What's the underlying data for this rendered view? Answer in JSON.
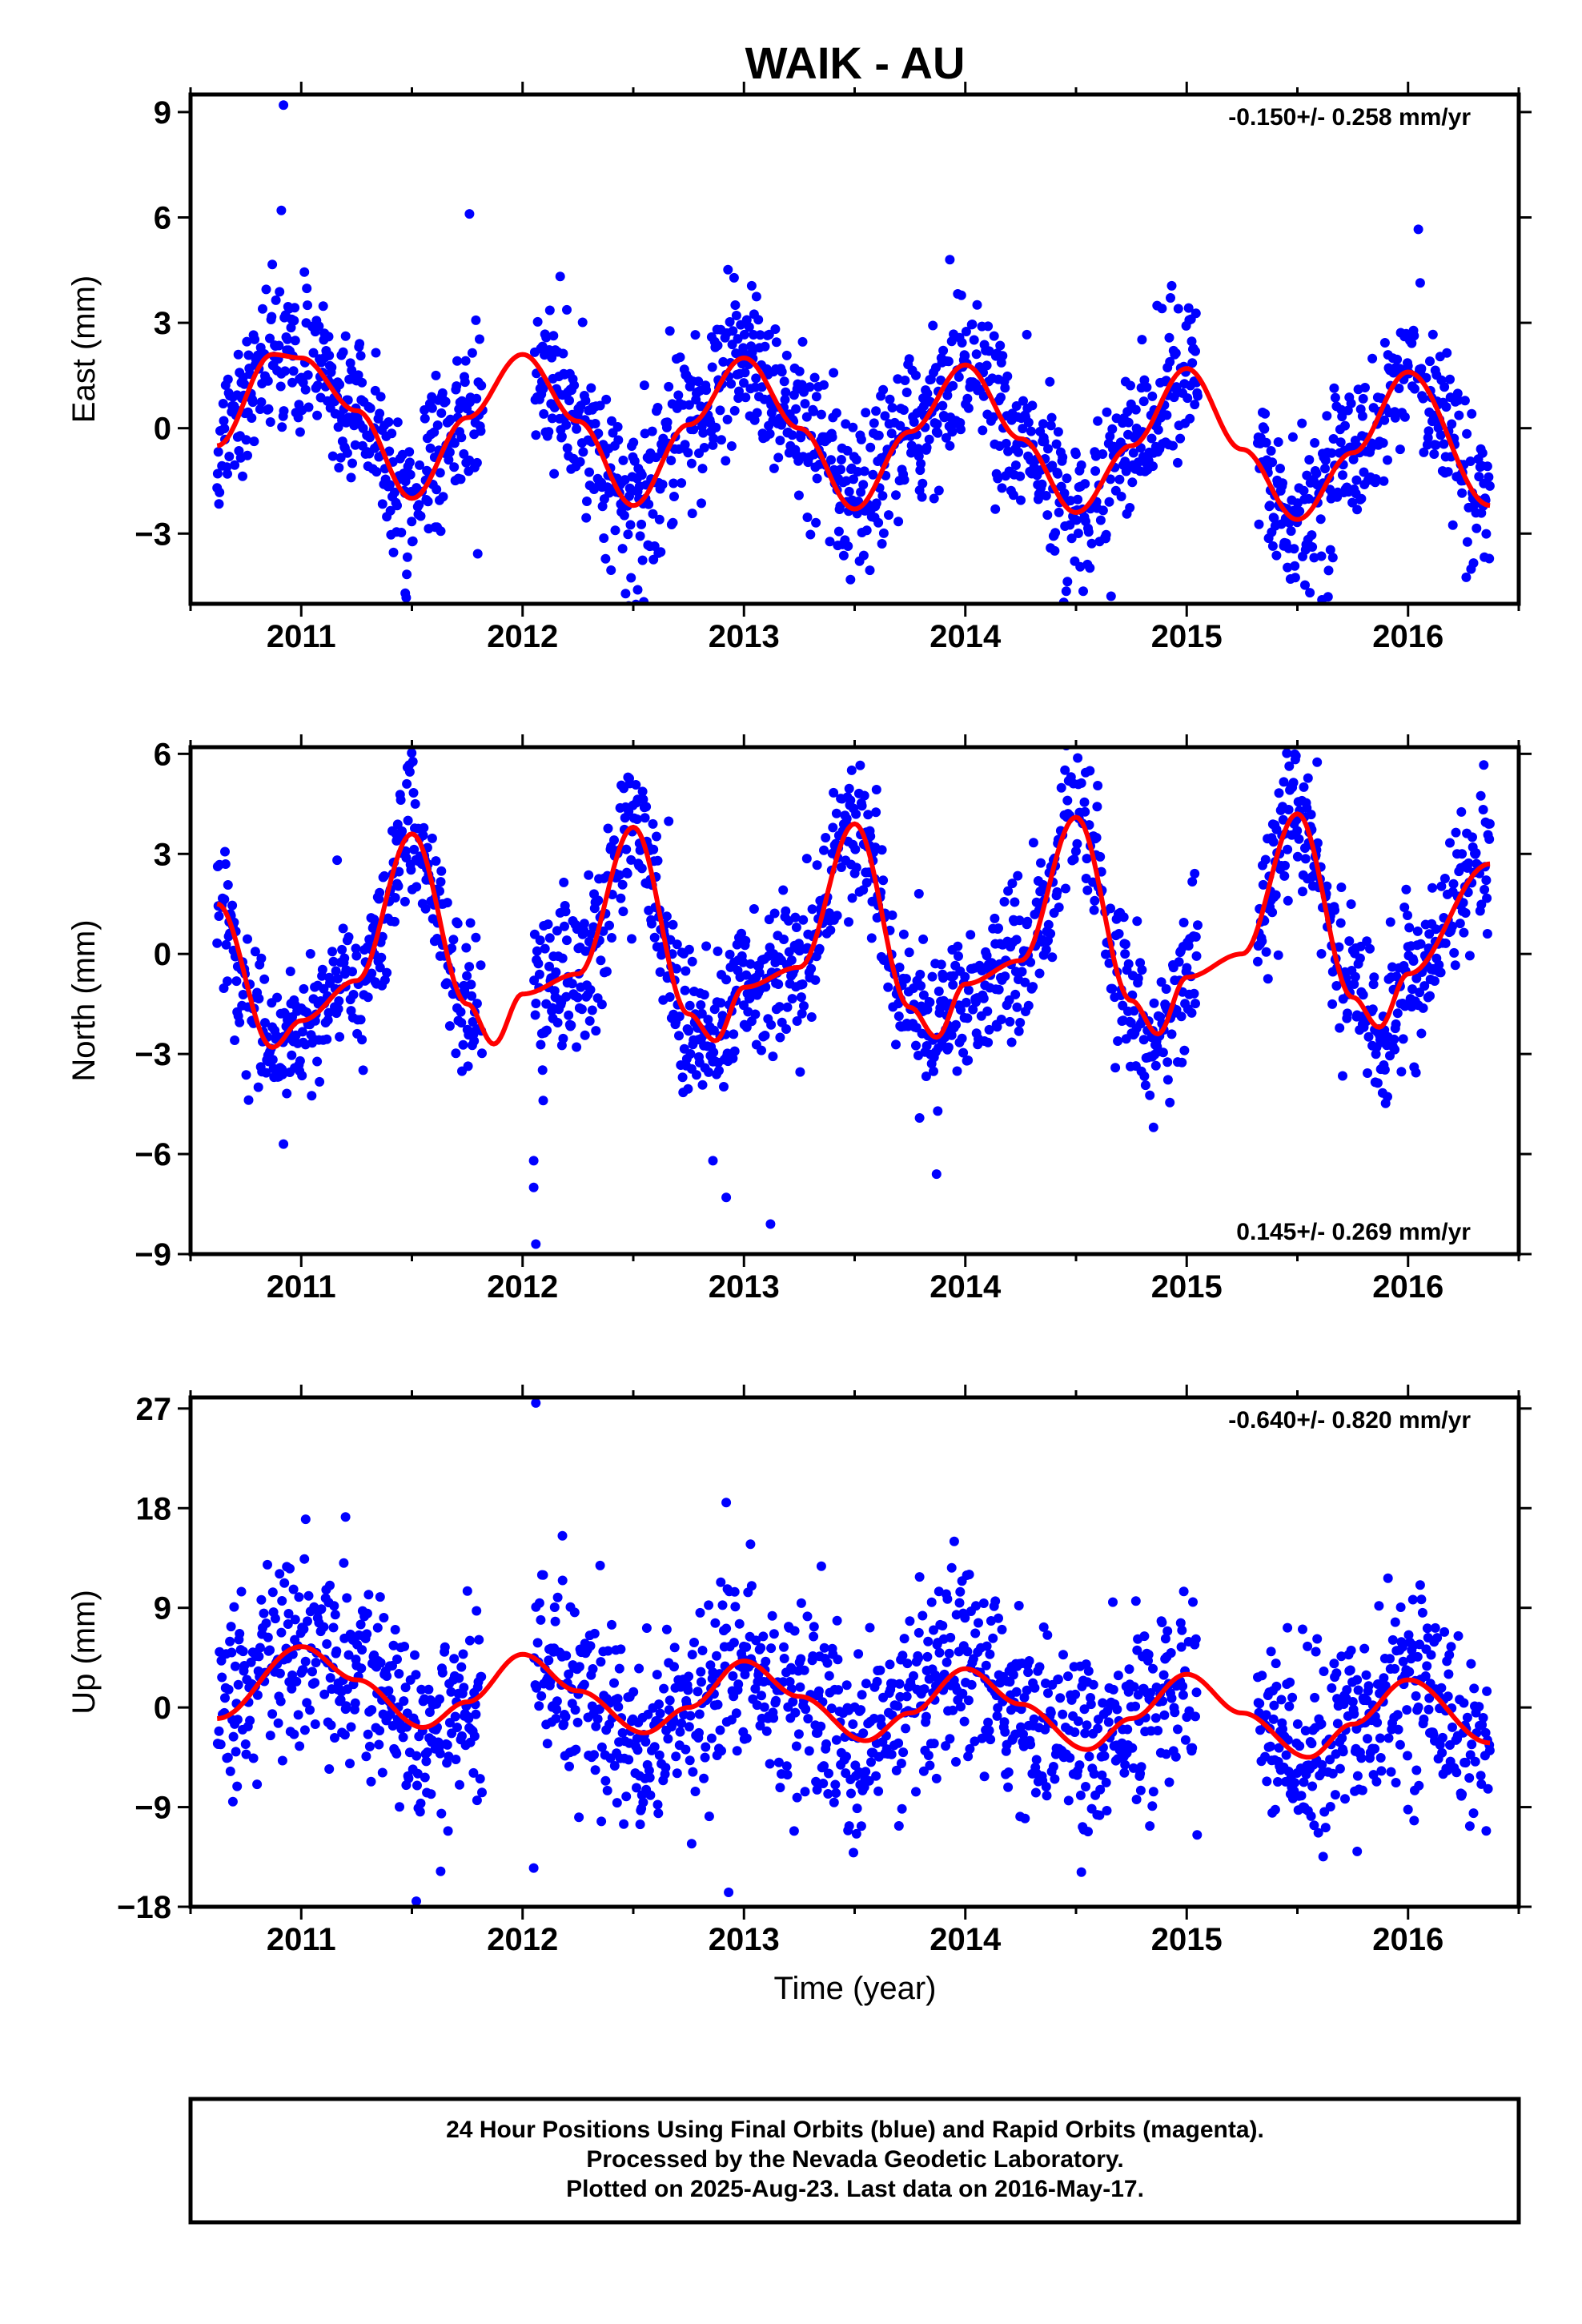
{
  "title": "WAIK - AU",
  "xlabel": "Time (year)",
  "colors": {
    "points": "#0000ff",
    "fit": "#ff0000",
    "frame": "#000000"
  },
  "footer": [
    "24 Hour Positions Using Final Orbits (blue) and Rapid Orbits (magenta).",
    "Processed by the Nevada Geodetic Laboratory.",
    "Plotted on 2025-Aug-23. Last data on 2016-May-17."
  ],
  "chart_data": [
    {
      "type": "scatter",
      "component": "east",
      "title": "",
      "xlabel": "",
      "ylabel": "East (mm)",
      "rate_label": "-0.150+/- 0.258 mm/yr",
      "rate_position": "top-right",
      "xlim": [
        2010.5,
        2016.5
      ],
      "ylim": [
        -5,
        9.5
      ],
      "xticks": [
        2011,
        2012,
        2013,
        2014,
        2015,
        2016
      ],
      "yticks": [
        -3,
        0,
        3,
        6,
        9
      ],
      "ytick_labels": [
        "−3",
        "0",
        "3",
        "6",
        "9"
      ],
      "data_range": [
        2010.62,
        2016.37
      ],
      "gaps": [
        [
          2011.82,
          2012.05
        ],
        [
          2015.05,
          2015.32
        ]
      ],
      "series": [
        {
          "kind": "fit",
          "seasonal": {
            "offset": -0.1,
            "rate": -0.15,
            "a1": 1.5,
            "b1": 1.7,
            "a2": -0.3,
            "b2": -0.2
          },
          "x": [
            2010.62,
            2010.87,
            2011.0,
            2011.25,
            2011.5,
            2011.75,
            2012.0,
            2012.25,
            2012.5,
            2012.75,
            2013.0,
            2013.25,
            2013.5,
            2013.75,
            2014.0,
            2014.25,
            2014.5,
            2014.75,
            2015.0,
            2015.25,
            2015.5,
            2015.75,
            2016.0,
            2016.37
          ],
          "y": [
            -0.5,
            2.1,
            2.0,
            0.5,
            -2.0,
            0.3,
            2.1,
            0.2,
            -2.2,
            0.1,
            2.0,
            0.0,
            -2.3,
            -0.1,
            1.8,
            -0.3,
            -2.4,
            -0.5,
            1.7,
            -0.6,
            -2.6,
            -0.7,
            1.6,
            -2.2
          ]
        },
        {
          "kind": "points",
          "noise": 1.1,
          "outliers": [
            [
              2010.92,
              9.2
            ],
            [
              2010.91,
              6.2
            ],
            [
              2011.76,
              6.1
            ],
            [
              2013.93,
              4.8
            ],
            [
              2011.47,
              -4.7
            ],
            [
              2012.52,
              -4.6
            ]
          ]
        }
      ]
    },
    {
      "type": "scatter",
      "component": "north",
      "title": "",
      "xlabel": "",
      "ylabel": "North (mm)",
      "rate_label": "0.145+/- 0.269 mm/yr",
      "rate_position": "bottom-right",
      "xlim": [
        2010.5,
        2016.5
      ],
      "ylim": [
        -9,
        6.2
      ],
      "xticks": [
        2011,
        2012,
        2013,
        2014,
        2015,
        2016
      ],
      "yticks": [
        -9,
        -6,
        -3,
        0,
        3,
        6
      ],
      "ytick_labels": [
        "−9",
        "−6",
        "−3",
        "0",
        "3",
        "6"
      ],
      "data_range": [
        2010.62,
        2016.37
      ],
      "gaps": [
        [
          2011.82,
          2012.05
        ],
        [
          2015.05,
          2015.32
        ]
      ],
      "series": [
        {
          "kind": "fit",
          "seasonal": {
            "offset": -0.2,
            "rate": 0.145,
            "a1": -2.6,
            "b1": -1.7,
            "a2": -0.6,
            "b2": -0.3
          },
          "x": [
            2010.62,
            2010.87,
            2011.0,
            2011.25,
            2011.5,
            2011.75,
            2011.87,
            2012.0,
            2012.25,
            2012.5,
            2012.75,
            2012.87,
            2013.0,
            2013.25,
            2013.5,
            2013.75,
            2013.87,
            2014.0,
            2014.25,
            2014.5,
            2014.75,
            2014.87,
            2015.0,
            2015.25,
            2015.5,
            2015.75,
            2015.87,
            2016.0,
            2016.37
          ],
          "y": [
            1.5,
            -2.8,
            -2.0,
            -0.8,
            3.6,
            -1.5,
            -2.7,
            -1.2,
            -0.6,
            3.8,
            -1.8,
            -2.6,
            -1.0,
            -0.4,
            3.9,
            -1.6,
            -2.5,
            -0.9,
            -0.2,
            4.1,
            -1.4,
            -2.4,
            -0.7,
            0.0,
            4.2,
            -1.3,
            -2.2,
            -0.6,
            2.7
          ]
        },
        {
          "kind": "points",
          "noise": 1.1,
          "outliers": [
            [
              2012.06,
              -8.7
            ],
            [
              2012.05,
              -7.0
            ],
            [
              2012.05,
              -6.2
            ],
            [
              2013.12,
              -8.1
            ],
            [
              2012.86,
              -6.2
            ],
            [
              2012.92,
              -7.3
            ],
            [
              2013.87,
              -6.6
            ],
            [
              2010.92,
              -5.7
            ],
            [
              2014.85,
              -5.2
            ]
          ]
        }
      ]
    },
    {
      "type": "scatter",
      "component": "up",
      "title": "",
      "xlabel": "Time (year)",
      "ylabel": "Up (mm)",
      "rate_label": "-0.640+/- 0.820 mm/yr",
      "rate_position": "top-right",
      "xlim": [
        2010.5,
        2016.5
      ],
      "ylim": [
        -18,
        28
      ],
      "xticks": [
        2011,
        2012,
        2013,
        2014,
        2015,
        2016
      ],
      "yticks": [
        -18,
        -9,
        0,
        9,
        18,
        27
      ],
      "ytick_labels": [
        "−18",
        "−9",
        "0",
        "9",
        "18",
        "27"
      ],
      "data_range": [
        2010.62,
        2016.37
      ],
      "gaps": [
        [
          2011.82,
          2012.05
        ],
        [
          2015.05,
          2015.32
        ]
      ],
      "series": [
        {
          "kind": "fit",
          "seasonal": {
            "offset": 1.0,
            "rate": -0.64,
            "a1": 3.5,
            "b1": -0.5,
            "a2": 0.4,
            "b2": 0.3
          },
          "x": [
            2010.62,
            2011.0,
            2011.25,
            2011.55,
            2011.75,
            2012.0,
            2012.25,
            2012.55,
            2012.75,
            2013.0,
            2013.25,
            2013.55,
            2013.75,
            2014.0,
            2014.25,
            2014.55,
            2014.75,
            2015.0,
            2015.25,
            2015.55,
            2015.75,
            2016.0,
            2016.37
          ],
          "y": [
            -1.0,
            5.5,
            2.5,
            -1.8,
            0.5,
            4.8,
            1.5,
            -2.3,
            0.0,
            4.2,
            1.0,
            -3.0,
            -0.5,
            3.5,
            0.3,
            -3.8,
            -1.0,
            3.0,
            -0.5,
            -4.5,
            -1.5,
            2.5,
            -3.2
          ]
        },
        {
          "kind": "points",
          "noise": 4.2,
          "outliers": [
            [
              2012.06,
              27.5
            ],
            [
              2012.92,
              18.5
            ],
            [
              2012.05,
              -14.5
            ],
            [
              2011.52,
              -17.5
            ],
            [
              2011.63,
              -14.8
            ],
            [
              2015.77,
              -13.0
            ],
            [
              2012.18,
              15.5
            ],
            [
              2011.02,
              17.0
            ],
            [
              2011.2,
              17.2
            ],
            [
              2013.95,
              15.0
            ]
          ]
        }
      ]
    }
  ]
}
